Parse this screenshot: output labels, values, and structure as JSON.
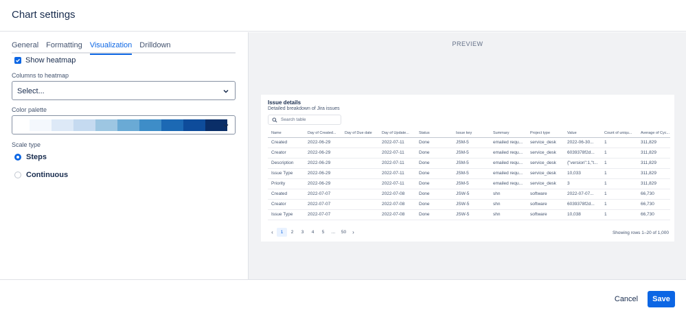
{
  "header": {
    "title": "Chart settings"
  },
  "tabs": [
    {
      "label": "General",
      "active": false
    },
    {
      "label": "Formatting",
      "active": false
    },
    {
      "label": "Visualization",
      "active": true
    },
    {
      "label": "Drilldown",
      "active": false
    }
  ],
  "show_heatmap": {
    "label": "Show heatmap",
    "checked": true
  },
  "columns_to_heatmap": {
    "label": "Columns to heatmap",
    "value": "Select..."
  },
  "color_palette": {
    "label": "Color palette",
    "colors": [
      "#f4f8fd",
      "#dde9f7",
      "#c5daf0",
      "#9dc6e2",
      "#6aaad5",
      "#3e8dc8",
      "#1c69b4",
      "#0e4c9b",
      "#0a2e68"
    ]
  },
  "scale_type": {
    "label": "Scale type",
    "options": [
      {
        "label": "Steps",
        "selected": true
      },
      {
        "label": "Continuous",
        "selected": false
      }
    ]
  },
  "preview": {
    "label": "PREVIEW",
    "table_title": "Issue details",
    "table_subtitle": "Detailed breakdown of Jira issues",
    "search_placeholder": "Search table",
    "columns": [
      "Name",
      "Day of Created...",
      "Day of Due date",
      "Day of Update...",
      "Status",
      "Issue key",
      "Summary",
      "Project type",
      "Value",
      "Count of uniqu...",
      "Average of Cyc..."
    ],
    "rows": [
      [
        "Created",
        "2022-06-29",
        "",
        "2022-07-11",
        "Done",
        "JSM-5",
        "emailed requ...",
        "service_desk",
        "2022-06-30...",
        "1",
        "311,829"
      ],
      [
        "Creator",
        "2022-06-29",
        "",
        "2022-07-11",
        "Done",
        "JSM-5",
        "emailed requ...",
        "service_desk",
        "6039378f2d...",
        "1",
        "311,829"
      ],
      [
        "Description",
        "2022-06-29",
        "",
        "2022-07-11",
        "Done",
        "JSM-5",
        "emailed requ...",
        "service_desk",
        "{\"version\":1,\"t...",
        "1",
        "311,829"
      ],
      [
        "Issue Type",
        "2022-06-29",
        "",
        "2022-07-11",
        "Done",
        "JSM-5",
        "emailed requ...",
        "service_desk",
        "10,033",
        "1",
        "311,829"
      ],
      [
        "Priority",
        "2022-06-29",
        "",
        "2022-07-11",
        "Done",
        "JSM-5",
        "emailed requ...",
        "service_desk",
        "3",
        "1",
        "311,829"
      ],
      [
        "Created",
        "2022-07-07",
        "",
        "2022-07-08",
        "Done",
        "JSW-5",
        "shn",
        "software",
        "2022-07-07...",
        "1",
        "66,730"
      ],
      [
        "Creator",
        "2022-07-07",
        "",
        "2022-07-08",
        "Done",
        "JSW-5",
        "shn",
        "software",
        "6039378f2d...",
        "1",
        "66,730"
      ],
      [
        "Issue Type",
        "2022-07-07",
        "",
        "2022-07-08",
        "Done",
        "JSW-5",
        "shn",
        "software",
        "10,038",
        "1",
        "66,730"
      ]
    ],
    "pagination": {
      "prev": "‹",
      "next": "›",
      "pages": [
        "1",
        "2",
        "3",
        "4",
        "5",
        "...",
        "50"
      ],
      "current": "1"
    },
    "rows_info": "Showing rows 1–20 of 1,000"
  },
  "footer": {
    "cancel": "Cancel",
    "save": "Save"
  },
  "colors": {
    "accent": "#0c66e4",
    "preview_bg": "#f1f2f4"
  }
}
